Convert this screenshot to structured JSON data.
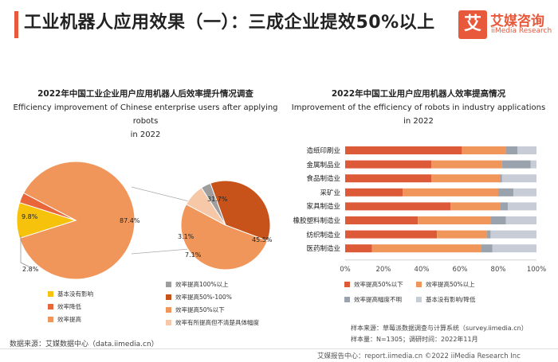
{
  "header": {
    "title": "工业机器人应用效果（一）：三成企业提效50%以上",
    "logo_mark": "艾",
    "logo_cn": "艾媒咨询",
    "logo_en": "iiMedia Research"
  },
  "colors": {
    "accent": "#e8583a",
    "pie_main": "#f0965a",
    "pie_yellow": "#f7c20b",
    "pie_red": "#e8663a",
    "pie_dark": "#c8531a",
    "pie_gray": "#9e9e9e",
    "pie_light": "#f6c8a8",
    "bar_dark": "#dc5a38",
    "bar_orange": "#f0965a",
    "bar_gray": "#9aa2ad",
    "bar_light": "#c7ccd6"
  },
  "chart_data": [
    {
      "type": "pie",
      "title": "2022年中国工业企业用户应用机器人后效率提升情况调查",
      "subtitle_en": "Efficiency improvement of Chinese enterprise users after applying robots",
      "subtitle_year": "in 2022",
      "main_pie": {
        "labels": [
          "效率提高",
          "基本没有影响",
          "效率降低"
        ],
        "values": [
          87.4,
          9.8,
          2.8
        ],
        "value_labels": [
          "87.4%",
          "9.8%",
          "2.8%"
        ]
      },
      "sub_pie": {
        "labels": [
          "效率提高50%-100%",
          "效率提高50%以下",
          "效率有所提高但不清楚具体幅度",
          "效率提高100%以上"
        ],
        "values": [
          31.7,
          45.5,
          7.1,
          3.1
        ],
        "value_labels": [
          "31.7%",
          "45.5%",
          "7.1%",
          "3.1%"
        ]
      },
      "legend": {
        "left": [
          "基本没有影响",
          "效率降低",
          "效率提高"
        ],
        "right": [
          "效率提高100%以上",
          "效率提高50%-100%",
          "效率提高50%以下",
          "效率有所提高但不清楚具体幅度"
        ]
      }
    },
    {
      "type": "bar",
      "stacked": true,
      "orientation": "horizontal",
      "title": "2022年中国工业用户应用机器人效率提高情况",
      "subtitle_en": "Improvement of the efficiency of robots in industry applications",
      "subtitle_year": "in 2022",
      "categories": [
        "造纸印刷业",
        "金属制品业",
        "食品制造业",
        "采矿业",
        "家具制造业",
        "橡胶塑料制造业",
        "纺织制造业",
        "医药制造业"
      ],
      "series": [
        {
          "name": "效率提高50%以下",
          "values": [
            61,
            45,
            45,
            30,
            55,
            38,
            48,
            14
          ]
        },
        {
          "name": "效率提高50%以上",
          "values": [
            23,
            37,
            36,
            50,
            26,
            38,
            26,
            57
          ]
        },
        {
          "name": "效率提高幅度不明",
          "values": [
            6,
            15,
            1,
            8,
            4,
            8,
            2,
            6
          ]
        },
        {
          "name": "基本没有影响/降低",
          "values": [
            10,
            3,
            18,
            12,
            15,
            16,
            24,
            23
          ]
        }
      ],
      "xlim": [
        0,
        100
      ],
      "ticks": [
        "0%",
        "20%",
        "40%",
        "60%",
        "80%",
        "100%"
      ],
      "legend": [
        "效率提高50%以下",
        "效率提高50%以上",
        "效率提高幅度不明",
        "基本没有影响/降低"
      ]
    }
  ],
  "footer": {
    "sample_source": "样本来源：草莓派数据调查与计算系统（survey.iimedia.cn）",
    "sample_size": "样本量：N=1305；调研时间：2022年11月",
    "data_source": "数据来源：艾媒数据中心（data.iimedia.cn）",
    "bottom_bar": "艾媒报告中心：report.iimedia.cn  ©2022  iiMedia Research  Inc"
  }
}
